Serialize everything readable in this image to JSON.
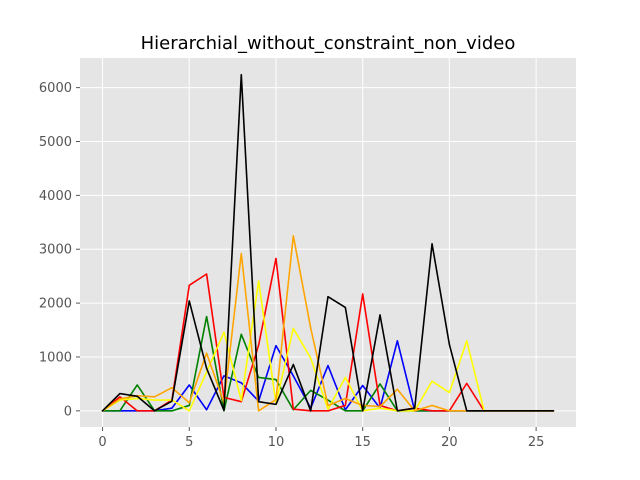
{
  "chart_data": {
    "type": "line",
    "title": "Hierarchial_without_constraint_non_video",
    "xlabel": "",
    "ylabel": "",
    "xlim": [
      -1.3,
      27.3
    ],
    "ylim": [
      -300,
      6550
    ],
    "xticks": [
      0,
      5,
      10,
      15,
      20,
      25
    ],
    "yticks": [
      0,
      1000,
      2000,
      3000,
      4000,
      5000,
      6000
    ],
    "grid": true,
    "background": "#E5E5E5",
    "grid_color": "#FFFFFF",
    "x": [
      0,
      1,
      2,
      3,
      4,
      5,
      6,
      7,
      8,
      9,
      10,
      11,
      12,
      13,
      14,
      15,
      16,
      17,
      18,
      19,
      20,
      21,
      22,
      23,
      24,
      25,
      26
    ],
    "series": [
      {
        "color": "#0000FF",
        "values": [
          0,
          0,
          0,
          0,
          50,
          480,
          20,
          650,
          520,
          180,
          1210,
          650,
          50,
          840,
          20,
          470,
          50,
          1300,
          0,
          0,
          0,
          0,
          0,
          0,
          0,
          0,
          0
        ]
      },
      {
        "color": "#008000",
        "values": [
          0,
          0,
          480,
          0,
          0,
          100,
          1750,
          0,
          1420,
          620,
          580,
          20,
          380,
          200,
          0,
          0,
          500,
          0,
          0,
          0,
          0,
          0,
          0,
          0,
          0,
          0,
          0
        ]
      },
      {
        "color": "#FF0000",
        "values": [
          0,
          260,
          0,
          0,
          200,
          2330,
          2540,
          250,
          170,
          1220,
          2830,
          30,
          0,
          0,
          100,
          2170,
          100,
          0,
          50,
          0,
          0,
          510,
          0,
          0,
          0,
          0,
          0
        ]
      },
      {
        "color": "#FFFF00",
        "values": [
          0,
          200,
          230,
          200,
          200,
          0,
          720,
          1460,
          190,
          2410,
          140,
          1530,
          980,
          30,
          620,
          0,
          50,
          0,
          0,
          550,
          340,
          1300,
          0,
          0,
          0,
          0,
          0
        ]
      },
      {
        "color": "#FFA500",
        "values": [
          0,
          220,
          280,
          260,
          430,
          150,
          1070,
          150,
          2920,
          0,
          210,
          3250,
          1540,
          100,
          230,
          100,
          80,
          400,
          0,
          100,
          0,
          0,
          0,
          0,
          0,
          0,
          0
        ]
      },
      {
        "color": "#000000",
        "values": [
          0,
          320,
          270,
          0,
          180,
          2040,
          790,
          10,
          6240,
          170,
          120,
          860,
          0,
          2120,
          1920,
          0,
          1780,
          0,
          50,
          3100,
          1230,
          0,
          0,
          0,
          0,
          0,
          0
        ]
      }
    ]
  }
}
